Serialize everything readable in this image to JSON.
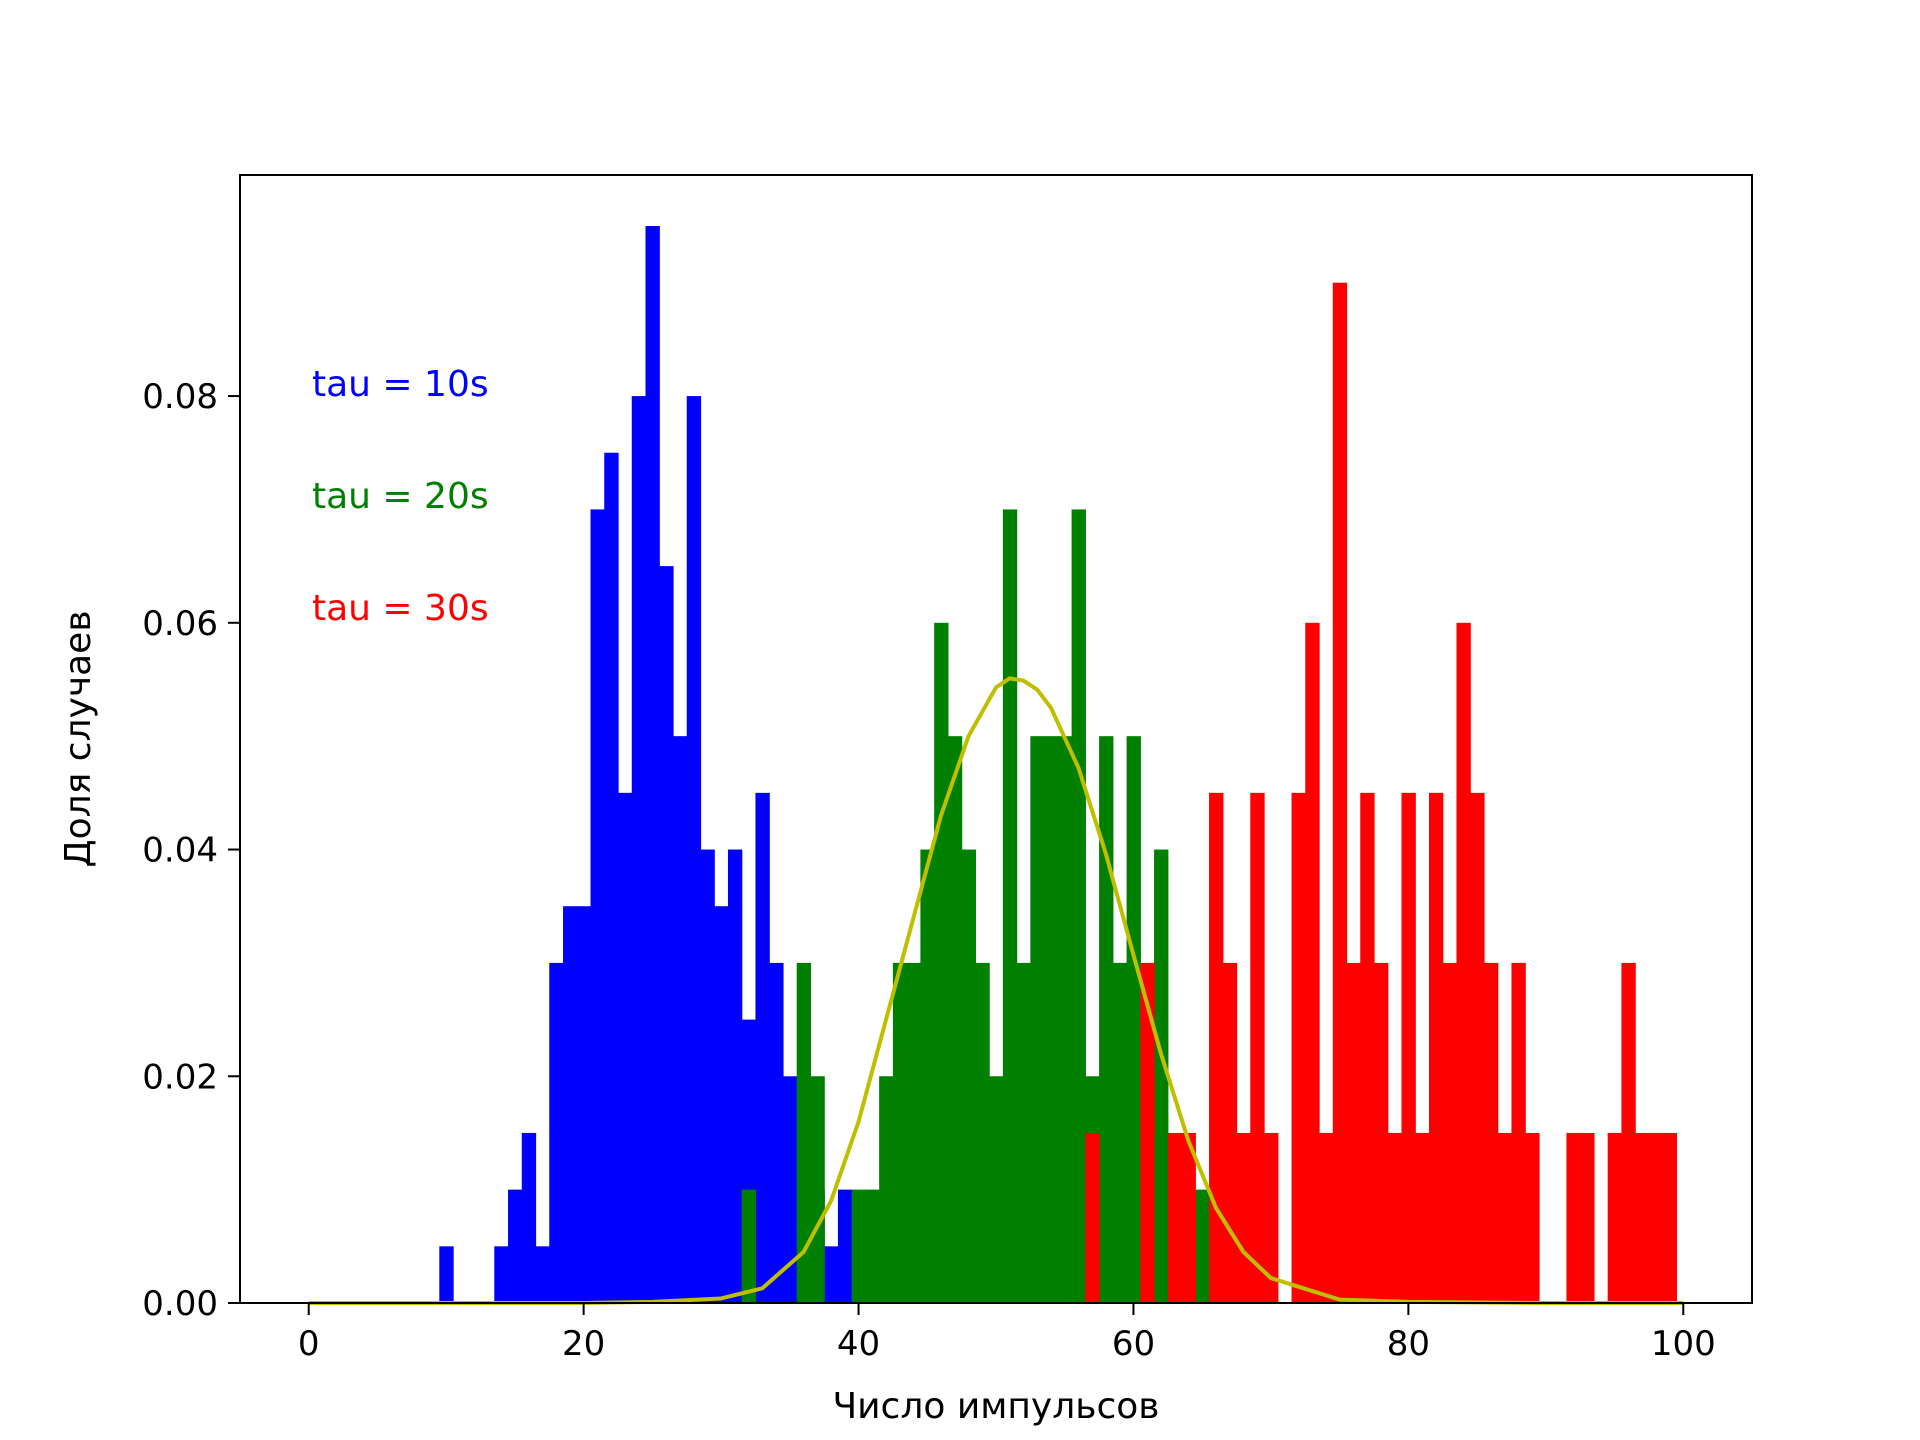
{
  "chart_data": {
    "type": "bar",
    "subtype": "histogram",
    "title": "",
    "xlabel": "Число импульсов",
    "ylabel": "Доля случаев",
    "xlim": [
      -5,
      105
    ],
    "ylim": [
      0,
      0.0995
    ],
    "xticks": [
      0,
      20,
      40,
      60,
      80,
      100
    ],
    "yticks": [
      0.0,
      0.02,
      0.04,
      0.06,
      0.08
    ],
    "xtick_labels": [
      "0",
      "20",
      "40",
      "60",
      "80",
      "100"
    ],
    "ytick_labels": [
      "0.00",
      "0.02",
      "0.04",
      "0.06",
      "0.08"
    ],
    "bin_width": 1,
    "grid": false,
    "legend_position": "top-left",
    "series": [
      {
        "name": "tau = 10s",
        "color": "#0000ff",
        "bins": [
          [
            9.5,
            0.005
          ],
          [
            13.5,
            0.005
          ],
          [
            14.5,
            0.01
          ],
          [
            15.5,
            0.015
          ],
          [
            16.5,
            0.005
          ],
          [
            17.5,
            0.03
          ],
          [
            18.5,
            0.035
          ],
          [
            19.5,
            0.035
          ],
          [
            20.5,
            0.07
          ],
          [
            21.5,
            0.075
          ],
          [
            22.5,
            0.045
          ],
          [
            23.5,
            0.08
          ],
          [
            24.5,
            0.095
          ],
          [
            25.5,
            0.065
          ],
          [
            26.5,
            0.05
          ],
          [
            27.5,
            0.08
          ],
          [
            28.5,
            0.04
          ],
          [
            29.5,
            0.035
          ],
          [
            30.5,
            0.04
          ],
          [
            31.5,
            0.025
          ],
          [
            32.5,
            0.045
          ],
          [
            33.5,
            0.03
          ],
          [
            34.5,
            0.02
          ],
          [
            35.5,
            0.02
          ],
          [
            36.5,
            0.01
          ],
          [
            37.5,
            0.005
          ],
          [
            38.5,
            0.01
          ]
        ]
      },
      {
        "name": "tau = 20s",
        "color": "#008000",
        "bins": [
          [
            31.5,
            0.01
          ],
          [
            35.5,
            0.03
          ],
          [
            36.5,
            0.02
          ],
          [
            37.5,
            0.0
          ],
          [
            39.5,
            0.01
          ],
          [
            40.5,
            0.01
          ],
          [
            41.5,
            0.02
          ],
          [
            42.5,
            0.03
          ],
          [
            43.5,
            0.03
          ],
          [
            44.5,
            0.04
          ],
          [
            45.5,
            0.06
          ],
          [
            46.5,
            0.05
          ],
          [
            47.5,
            0.04
          ],
          [
            48.5,
            0.03
          ],
          [
            49.5,
            0.02
          ],
          [
            50.5,
            0.07
          ],
          [
            51.5,
            0.03
          ],
          [
            52.5,
            0.05
          ],
          [
            53.5,
            0.05
          ],
          [
            54.5,
            0.05
          ],
          [
            55.5,
            0.07
          ],
          [
            56.5,
            0.02
          ],
          [
            57.5,
            0.05
          ],
          [
            58.5,
            0.03
          ],
          [
            59.5,
            0.05
          ],
          [
            61.5,
            0.04
          ],
          [
            64.5,
            0.01
          ]
        ]
      },
      {
        "name": "tau = 30s",
        "color": "#ff0000",
        "bins": [
          [
            56.5,
            0.015
          ],
          [
            60.5,
            0.03
          ],
          [
            62.5,
            0.015
          ],
          [
            63.5,
            0.015
          ],
          [
            65.5,
            0.045
          ],
          [
            66.5,
            0.03
          ],
          [
            67.5,
            0.015
          ],
          [
            68.5,
            0.045
          ],
          [
            69.5,
            0.015
          ],
          [
            71.5,
            0.045
          ],
          [
            72.5,
            0.06
          ],
          [
            73.5,
            0.015
          ],
          [
            74.5,
            0.09
          ],
          [
            75.5,
            0.03
          ],
          [
            76.5,
            0.045
          ],
          [
            77.5,
            0.03
          ],
          [
            78.5,
            0.015
          ],
          [
            79.5,
            0.045
          ],
          [
            80.5,
            0.015
          ],
          [
            81.5,
            0.045
          ],
          [
            82.5,
            0.03
          ],
          [
            83.5,
            0.06
          ],
          [
            84.5,
            0.045
          ],
          [
            85.5,
            0.03
          ],
          [
            86.5,
            0.015
          ],
          [
            87.5,
            0.03
          ],
          [
            88.5,
            0.015
          ],
          [
            91.5,
            0.015
          ],
          [
            92.5,
            0.015
          ],
          [
            94.5,
            0.015
          ],
          [
            95.5,
            0.03
          ],
          [
            96.5,
            0.015
          ],
          [
            97.5,
            0.015
          ],
          [
            98.5,
            0.015
          ]
        ]
      }
    ],
    "curve": {
      "color": "#bfbf00",
      "x": [
        0,
        10,
        20,
        25,
        30,
        33,
        36,
        38,
        40,
        42,
        44,
        46,
        48,
        50,
        51,
        52,
        53,
        54,
        56,
        58,
        60,
        62,
        64,
        66,
        68,
        70,
        75,
        80,
        90,
        100
      ],
      "y": [
        0.0,
        0.0,
        0.0,
        0.0001,
        0.0004,
        0.0013,
        0.0045,
        0.009,
        0.016,
        0.025,
        0.034,
        0.043,
        0.05,
        0.0543,
        0.0551,
        0.0549,
        0.0541,
        0.0525,
        0.0472,
        0.0396,
        0.0307,
        0.022,
        0.0143,
        0.0084,
        0.0045,
        0.0022,
        0.0003,
        0.0001,
        0.0,
        0.0
      ]
    }
  }
}
